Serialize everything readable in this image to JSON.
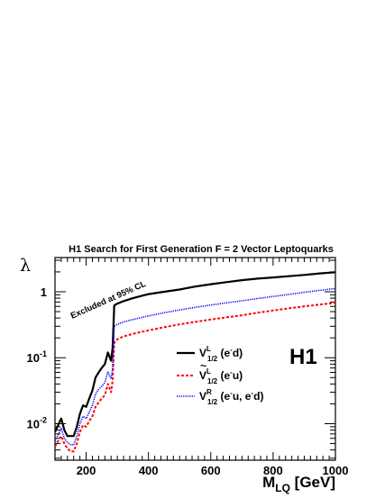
{
  "chart_data": {
    "type": "line",
    "title": "H1 Search for First Generation F = 2 Vector Leptoquarks",
    "ylabel": "λ",
    "xlabel": {
      "main": "M",
      "sub": "LQ",
      "unit": " [GeV]"
    },
    "xlim": [
      100,
      1000
    ],
    "ylim": [
      0.0028,
      3.3
    ],
    "yscale": "log",
    "xticks": [
      200,
      400,
      600,
      800,
      1000
    ],
    "yticks": [
      {
        "value": 0.01,
        "base": "10",
        "exp": "-2"
      },
      {
        "value": 0.1,
        "base": "10",
        "exp": "-1"
      },
      {
        "value": 1,
        "base": "1",
        "exp": ""
      }
    ],
    "annotation": "Excluded at 95% CL",
    "experiment_label": "H1",
    "series": [
      {
        "style": "solid",
        "color": "#000000",
        "legend": {
          "base": "V",
          "sup": "L",
          "sub": "1/2",
          "tilde": false,
          "rest": " (e",
          "rest_sup": "-",
          "rest2": "d)"
        },
        "x": [
          100,
          110,
          120,
          130,
          140,
          150,
          160,
          170,
          180,
          190,
          200,
          210,
          220,
          230,
          240,
          250,
          260,
          270,
          280,
          285,
          290,
          295,
          300,
          320,
          350,
          400,
          450,
          500,
          550,
          600,
          650,
          700,
          750,
          800,
          850,
          900,
          950,
          1000
        ],
        "y": [
          0.0075,
          0.0095,
          0.012,
          0.008,
          0.0065,
          0.0065,
          0.0065,
          0.009,
          0.014,
          0.019,
          0.018,
          0.024,
          0.032,
          0.05,
          0.06,
          0.07,
          0.08,
          0.12,
          0.09,
          0.14,
          0.62,
          0.64,
          0.66,
          0.72,
          0.8,
          0.92,
          1.0,
          1.08,
          1.2,
          1.3,
          1.4,
          1.5,
          1.58,
          1.65,
          1.72,
          1.8,
          1.9,
          1.98
        ]
      },
      {
        "style": "dashed",
        "color": "#ff0000",
        "legend": {
          "base": "V",
          "sup": "L",
          "sub": "1/2",
          "tilde": true,
          "rest": " (e",
          "rest_sup": "-",
          "rest2": "u)"
        },
        "x": [
          100,
          110,
          120,
          130,
          140,
          150,
          160,
          170,
          180,
          190,
          200,
          210,
          220,
          230,
          240,
          250,
          260,
          270,
          280,
          285,
          290,
          295,
          300,
          320,
          350,
          400,
          450,
          500,
          550,
          600,
          650,
          700,
          750,
          800,
          850,
          900,
          950,
          1000
        ],
        "y": [
          0.0045,
          0.0055,
          0.0065,
          0.005,
          0.0042,
          0.0038,
          0.0038,
          0.005,
          0.0075,
          0.0095,
          0.009,
          0.011,
          0.013,
          0.018,
          0.021,
          0.024,
          0.027,
          0.04,
          0.03,
          0.045,
          0.17,
          0.18,
          0.19,
          0.21,
          0.23,
          0.26,
          0.29,
          0.32,
          0.35,
          0.38,
          0.41,
          0.44,
          0.48,
          0.52,
          0.56,
          0.6,
          0.64,
          0.68
        ]
      },
      {
        "style": "dotted",
        "color": "#0000ff",
        "legend": {
          "base": "V",
          "sup": "R",
          "sub": "1/2",
          "tilde": false,
          "rest": " (e",
          "rest_sup": "-",
          "rest2": "u, e",
          "rest2_sup": "-",
          "rest3": "d)"
        },
        "x": [
          100,
          110,
          120,
          130,
          140,
          150,
          160,
          170,
          180,
          190,
          200,
          210,
          220,
          230,
          240,
          250,
          260,
          270,
          280,
          285,
          290,
          295,
          300,
          320,
          350,
          400,
          450,
          500,
          550,
          600,
          650,
          700,
          750,
          800,
          850,
          900,
          950,
          1000
        ],
        "y": [
          0.0055,
          0.0068,
          0.0085,
          0.006,
          0.0052,
          0.0048,
          0.0048,
          0.0065,
          0.01,
          0.013,
          0.012,
          0.015,
          0.019,
          0.028,
          0.033,
          0.037,
          0.042,
          0.062,
          0.048,
          0.07,
          0.3,
          0.31,
          0.32,
          0.35,
          0.38,
          0.43,
          0.48,
          0.53,
          0.58,
          0.63,
          0.68,
          0.73,
          0.79,
          0.85,
          0.91,
          0.98,
          1.05,
          1.12
        ]
      }
    ]
  }
}
